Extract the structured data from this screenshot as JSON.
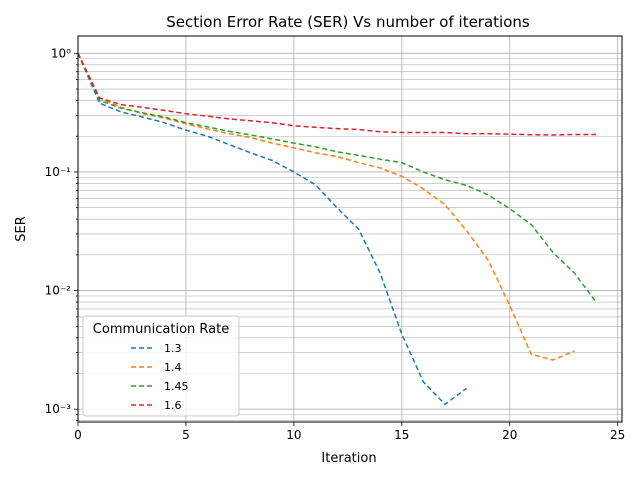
{
  "chart_data": {
    "type": "line",
    "title": "Section Error Rate (SER) Vs number of iterations",
    "xlabel": "Iteration",
    "ylabel": "SER",
    "xlim": [
      0,
      25.2
    ],
    "ylim": [
      0.00078,
      1.4
    ],
    "yscale": "log",
    "grid": "on (major and minor)",
    "x_ticks": [
      0,
      5,
      10,
      15,
      20,
      25
    ],
    "x_tick_labels": [
      "0",
      "5",
      "10",
      "15",
      "20",
      "25"
    ],
    "y_ticks": [
      0.001,
      0.01,
      0.1,
      1
    ],
    "y_tick_labels": [
      "10⁻³",
      "10⁻²",
      "10⁻¹",
      "10⁰"
    ],
    "legend": {
      "title": "Communication Rate",
      "placement": "lower-left"
    },
    "series": [
      {
        "name": "1.3",
        "color": "#1f77b4",
        "x": [
          0,
          1,
          2,
          3,
          4,
          5,
          6,
          7,
          8,
          9,
          10,
          11,
          12,
          13,
          14,
          15,
          16,
          17,
          18
        ],
        "y": [
          1.0,
          0.38,
          0.32,
          0.29,
          0.26,
          0.225,
          0.2,
          0.17,
          0.145,
          0.125,
          0.1,
          0.078,
          0.05,
          0.033,
          0.014,
          0.0043,
          0.0017,
          0.0011,
          0.0015
        ]
      },
      {
        "name": "1.4",
        "color": "#ff7f0e",
        "x": [
          0,
          1,
          2,
          3,
          4,
          5,
          6,
          7,
          8,
          9,
          10,
          11,
          12,
          13,
          14,
          15,
          16,
          17,
          18,
          19,
          20,
          21,
          22,
          23
        ],
        "y": [
          1.0,
          0.42,
          0.35,
          0.31,
          0.285,
          0.255,
          0.23,
          0.21,
          0.195,
          0.175,
          0.16,
          0.145,
          0.135,
          0.12,
          0.108,
          0.092,
          0.072,
          0.053,
          0.032,
          0.018,
          0.0075,
          0.0029,
          0.0026,
          0.0031
        ]
      },
      {
        "name": "1.45",
        "color": "#2ca02c",
        "x": [
          0,
          1,
          2,
          3,
          4,
          5,
          6,
          7,
          8,
          9,
          10,
          11,
          12,
          13,
          14,
          15,
          16,
          17,
          18,
          19,
          20,
          21,
          22,
          23,
          24
        ],
        "y": [
          1.0,
          0.4,
          0.345,
          0.315,
          0.29,
          0.26,
          0.24,
          0.22,
          0.205,
          0.19,
          0.175,
          0.163,
          0.148,
          0.138,
          0.128,
          0.12,
          0.1,
          0.086,
          0.077,
          0.064,
          0.049,
          0.036,
          0.021,
          0.014,
          0.008
        ]
      },
      {
        "name": "1.6",
        "color": "#d62728",
        "x": [
          0,
          1,
          2,
          3,
          4,
          5,
          6,
          7,
          8,
          9,
          10,
          11,
          12,
          13,
          14,
          15,
          16,
          17,
          18,
          19,
          20,
          21,
          22,
          23,
          24
        ],
        "y": [
          1.0,
          0.42,
          0.37,
          0.35,
          0.33,
          0.31,
          0.295,
          0.28,
          0.27,
          0.26,
          0.245,
          0.238,
          0.232,
          0.228,
          0.218,
          0.215,
          0.215,
          0.215,
          0.21,
          0.21,
          0.208,
          0.206,
          0.205,
          0.207,
          0.207
        ]
      }
    ]
  }
}
